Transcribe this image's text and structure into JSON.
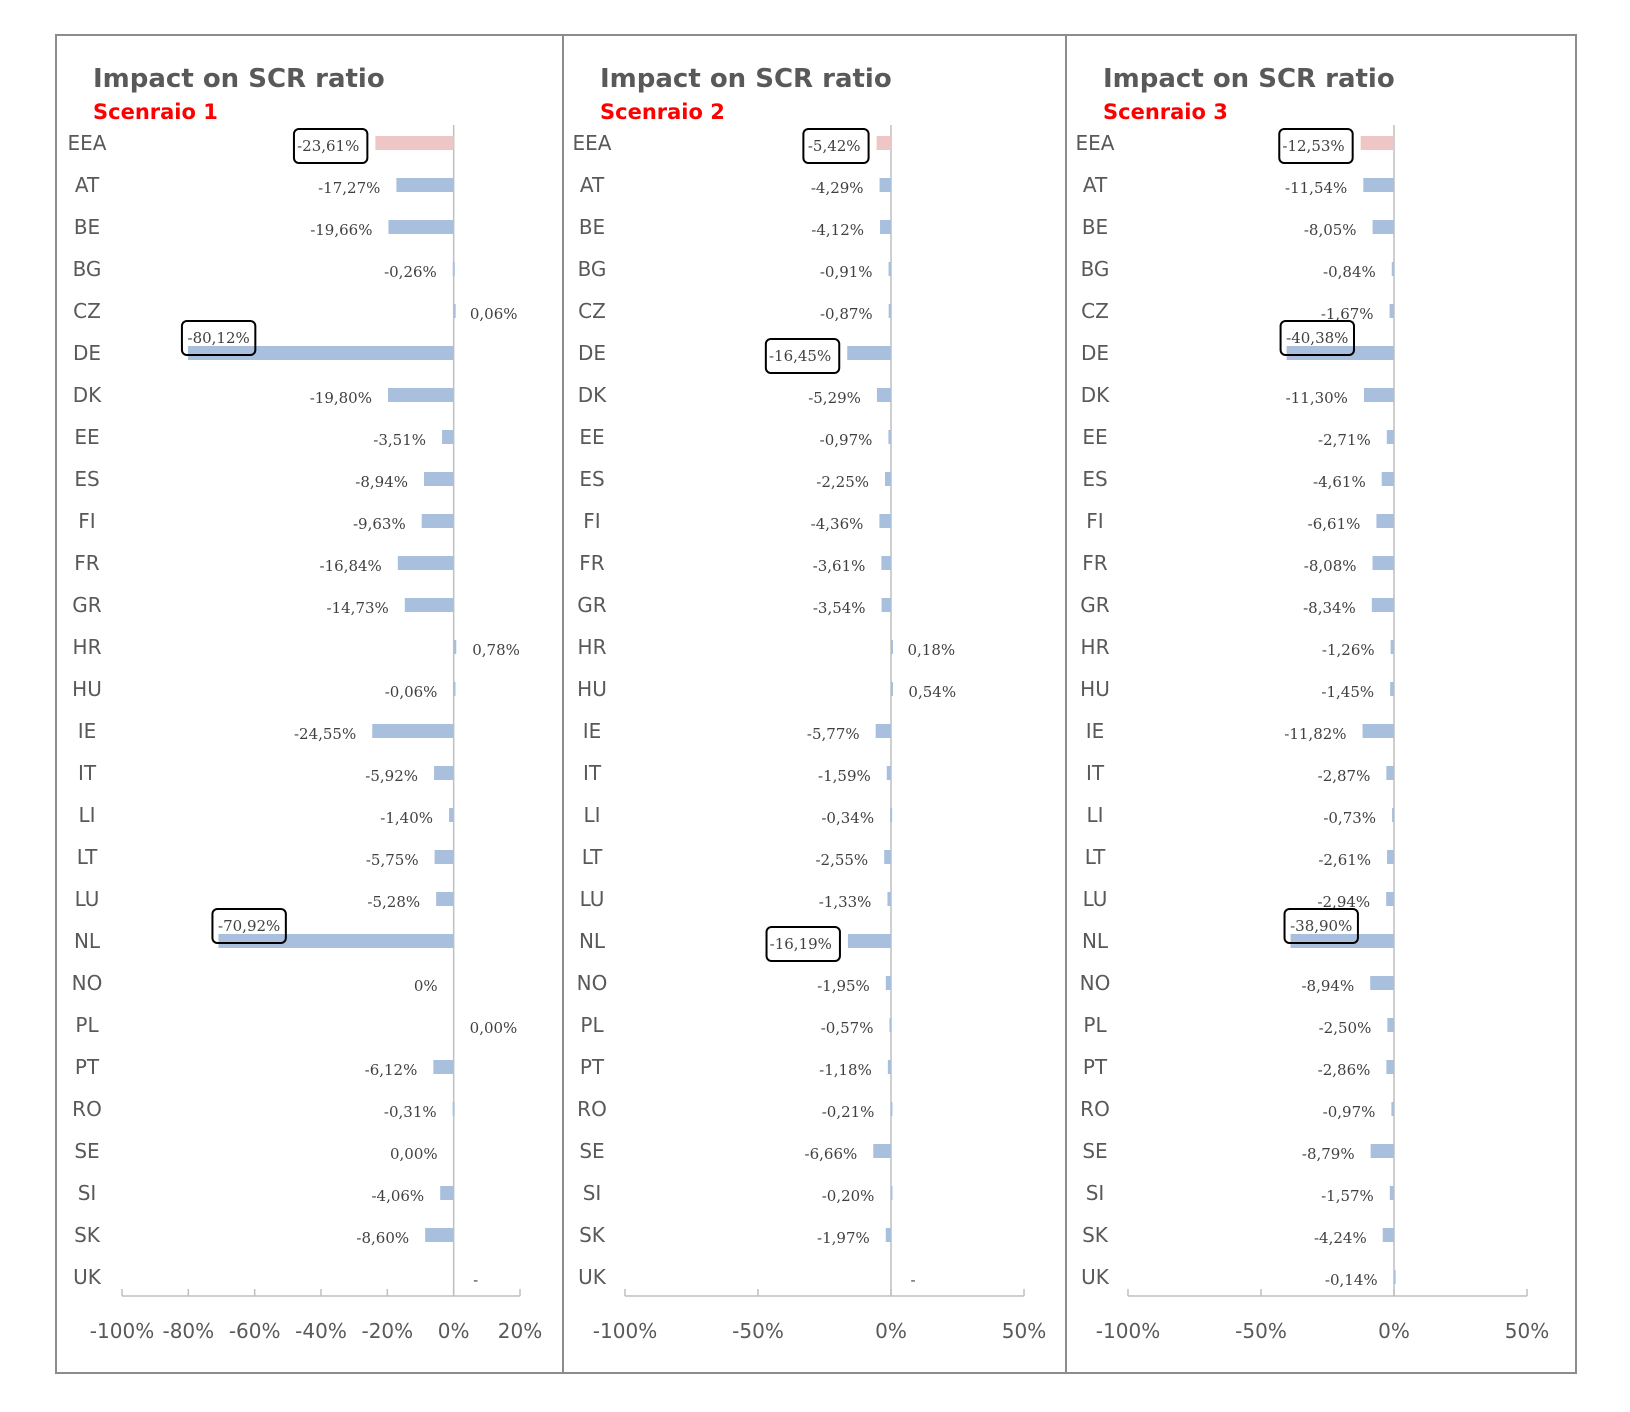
{
  "colors": {
    "bar": "#a8bfdd",
    "highlight_bar": "#efc6c6",
    "axis": "#bfbfbf",
    "subtitle": "#ff0000",
    "title": "#595959",
    "frame": "#8c8c8c"
  },
  "panels": [
    {
      "title": "Impact on SCR ratio",
      "subtitle": "Scenraio 1"
    },
    {
      "title": "Impact on SCR ratio",
      "subtitle": "Scenraio 2"
    },
    {
      "title": "Impact on SCR ratio",
      "subtitle": "Scenraio 3"
    }
  ],
  "chart_data": [
    {
      "type": "bar",
      "orientation": "horizontal",
      "title": "Impact on SCR ratio",
      "subtitle": "Scenraio 1",
      "categories": [
        "EEA",
        "AT",
        "BE",
        "BG",
        "CZ",
        "DE",
        "DK",
        "EE",
        "ES",
        "FI",
        "FR",
        "GR",
        "HR",
        "HU",
        "IE",
        "IT",
        "LI",
        "LT",
        "LU",
        "NL",
        "NO",
        "PL",
        "PT",
        "RO",
        "SE",
        "SI",
        "SK",
        "UK"
      ],
      "values": [
        -23.61,
        -17.27,
        -19.66,
        -0.26,
        0.06,
        -80.12,
        -19.8,
        -3.51,
        -8.94,
        -9.63,
        -16.84,
        -14.73,
        0.78,
        -0.06,
        -24.55,
        -5.92,
        -1.4,
        -5.75,
        -5.28,
        -70.92,
        0,
        0.0,
        -6.12,
        -0.31,
        0.0,
        -4.06,
        -8.6,
        null
      ],
      "labels": [
        "-23,61%",
        "-17,27%",
        "-19,66%",
        "-0,26%",
        "0,06%",
        "-80,12%",
        "-19,80%",
        "-3,51%",
        "-8,94%",
        "-9,63%",
        "-16,84%",
        "-14,73%",
        "0,78%",
        "-0,06%",
        "-24,55%",
        "-5,92%",
        "-1,40%",
        "-5,75%",
        "-5,28%",
        "-70,92%",
        "0%",
        "0,00%",
        "-6,12%",
        "-0,31%",
        "0,00%",
        "-4,06%",
        "-8,60%",
        "-"
      ],
      "highlighted_category": "EEA",
      "boxed_labels": [
        "EEA",
        "DE",
        "NL"
      ],
      "xlim": [
        -100,
        20
      ],
      "xticks": [
        "-100%",
        "-80%",
        "-60%",
        "-40%",
        "-20%",
        "0%",
        "20%"
      ],
      "xtick_values": [
        -100,
        -80,
        -60,
        -40,
        -20,
        0,
        20
      ]
    },
    {
      "type": "bar",
      "orientation": "horizontal",
      "title": "Impact on SCR ratio",
      "subtitle": "Scenraio 2",
      "categories": [
        "EEA",
        "AT",
        "BE",
        "BG",
        "CZ",
        "DE",
        "DK",
        "EE",
        "ES",
        "FI",
        "FR",
        "GR",
        "HR",
        "HU",
        "IE",
        "IT",
        "LI",
        "LT",
        "LU",
        "NL",
        "NO",
        "PL",
        "PT",
        "RO",
        "SE",
        "SI",
        "SK",
        "UK"
      ],
      "values": [
        -5.42,
        -4.29,
        -4.12,
        -0.91,
        -0.87,
        -16.45,
        -5.29,
        -0.97,
        -2.25,
        -4.36,
        -3.61,
        -3.54,
        0.18,
        0.54,
        -5.77,
        -1.59,
        -0.34,
        -2.55,
        -1.33,
        -16.19,
        -1.95,
        -0.57,
        -1.18,
        -0.21,
        -6.66,
        -0.2,
        -1.97,
        null
      ],
      "labels": [
        "-5,42%",
        "-4,29%",
        "-4,12%",
        "-0,91%",
        "-0,87%",
        "-16,45%",
        "-5,29%",
        "-0,97%",
        "-2,25%",
        "-4,36%",
        "-3,61%",
        "-3,54%",
        "0,18%",
        "0,54%",
        "-5,77%",
        "-1,59%",
        "-0,34%",
        "-2,55%",
        "-1,33%",
        "-16,19%",
        "-1,95%",
        "-0,57%",
        "-1,18%",
        "-0,21%",
        "-6,66%",
        "-0,20%",
        "-1,97%",
        "-"
      ],
      "highlighted_category": "EEA",
      "boxed_labels": [
        "EEA",
        "DE",
        "NL"
      ],
      "xlim": [
        -100,
        50
      ],
      "xticks": [
        "-100%",
        "-50%",
        "0%",
        "50%"
      ],
      "xtick_values": [
        -100,
        -50,
        0,
        50
      ]
    },
    {
      "type": "bar",
      "orientation": "horizontal",
      "title": "Impact on SCR ratio",
      "subtitle": "Scenraio 3",
      "categories": [
        "EEA",
        "AT",
        "BE",
        "BG",
        "CZ",
        "DE",
        "DK",
        "EE",
        "ES",
        "FI",
        "FR",
        "GR",
        "HR",
        "HU",
        "IE",
        "IT",
        "LI",
        "LT",
        "LU",
        "NL",
        "NO",
        "PL",
        "PT",
        "RO",
        "SE",
        "SI",
        "SK",
        "UK"
      ],
      "values": [
        -12.53,
        -11.54,
        -8.05,
        -0.84,
        -1.67,
        -40.38,
        -11.3,
        -2.71,
        -4.61,
        -6.61,
        -8.08,
        -8.34,
        -1.26,
        -1.45,
        -11.82,
        -2.87,
        -0.73,
        -2.61,
        -2.94,
        -38.9,
        -8.94,
        -2.5,
        -2.86,
        -0.97,
        -8.79,
        -1.57,
        -4.24,
        -0.14
      ],
      "labels": [
        "-12,53%",
        "-11,54%",
        "-8,05%",
        "-0,84%",
        "-1,67%",
        "-40,38%",
        "-11,30%",
        "-2,71%",
        "-4,61%",
        "-6,61%",
        "-8,08%",
        "-8,34%",
        "-1,26%",
        "-1,45%",
        "-11,82%",
        "-2,87%",
        "-0,73%",
        "-2,61%",
        "-2,94%",
        "-38,90%",
        "-8,94%",
        "-2,50%",
        "-2,86%",
        "-0,97%",
        "-8,79%",
        "-1,57%",
        "-4,24%",
        "-0,14%"
      ],
      "highlighted_category": "EEA",
      "boxed_labels": [
        "EEA",
        "DE",
        "NL"
      ],
      "xlim": [
        -100,
        50
      ],
      "xticks": [
        "-100%",
        "-50%",
        "0%",
        "50%"
      ],
      "xtick_values": [
        -100,
        -50,
        0,
        50
      ]
    }
  ]
}
